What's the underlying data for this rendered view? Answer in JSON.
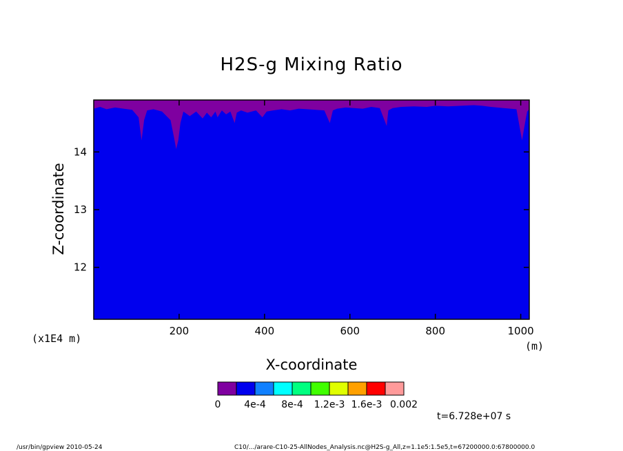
{
  "chart_data": {
    "type": "heatmap",
    "title": "H2S-g Mixing Ratio",
    "xlabel": "X-coordinate",
    "ylabel": "Z-coordinate",
    "x_unit": "(m)",
    "y_unit": "(x1E4 m)",
    "xlim": [
      0,
      1020
    ],
    "ylim": [
      11.1,
      14.9
    ],
    "x_ticks": [
      200,
      400,
      600,
      800,
      1000
    ],
    "y_ticks": [
      12,
      13,
      14
    ],
    "fill_color": "#0000ee",
    "top_band_color": "#7f00a0",
    "top_band_profile": {
      "x": [
        0,
        15,
        30,
        50,
        70,
        90,
        105,
        112,
        118,
        125,
        140,
        160,
        180,
        188,
        193,
        198,
        203,
        210,
        225,
        240,
        255,
        265,
        275,
        285,
        290,
        300,
        310,
        320,
        330,
        335,
        345,
        360,
        380,
        395,
        405,
        420,
        440,
        460,
        480,
        500,
        520,
        540,
        553,
        560,
        570,
        590,
        610,
        630,
        650,
        670,
        686,
        690,
        700,
        720,
        750,
        780,
        800,
        830,
        860,
        890,
        910,
        930,
        960,
        990,
        1003,
        1010,
        1015,
        1020
      ],
      "z": [
        14.75,
        14.78,
        14.74,
        14.77,
        14.75,
        14.73,
        14.6,
        14.2,
        14.55,
        14.72,
        14.74,
        14.7,
        14.55,
        14.25,
        14.05,
        14.2,
        14.5,
        14.7,
        14.62,
        14.7,
        14.58,
        14.68,
        14.6,
        14.7,
        14.6,
        14.72,
        14.65,
        14.7,
        14.5,
        14.68,
        14.72,
        14.68,
        14.72,
        14.6,
        14.7,
        14.72,
        14.74,
        14.72,
        14.75,
        14.74,
        14.73,
        14.72,
        14.5,
        14.72,
        14.75,
        14.77,
        14.76,
        14.75,
        14.78,
        14.76,
        14.45,
        14.72,
        14.76,
        14.78,
        14.79,
        14.78,
        14.8,
        14.79,
        14.8,
        14.81,
        14.8,
        14.78,
        14.76,
        14.74,
        14.2,
        14.5,
        14.7,
        14.74
      ]
    },
    "colorbar": {
      "colors": [
        "#7f00a0",
        "#0000ee",
        "#1080ff",
        "#00ffff",
        "#00ff80",
        "#40ff00",
        "#e0ff00",
        "#ffa000",
        "#ff0000",
        "#ff9a9a"
      ],
      "labels": [
        "0",
        "4e-4",
        "8e-4",
        "1.2e-3",
        "1.6e-3",
        "0.002"
      ]
    },
    "time_label": "t=6.728e+07 s"
  },
  "footer": {
    "left": "/usr/bin/gpview   2010-05-24",
    "right": "C10/.../arare-C10-25-AllNodes_Analysis.nc@H2S-g_All,z=1.1e5:1.5e5,t=67200000.0:67800000.0"
  }
}
